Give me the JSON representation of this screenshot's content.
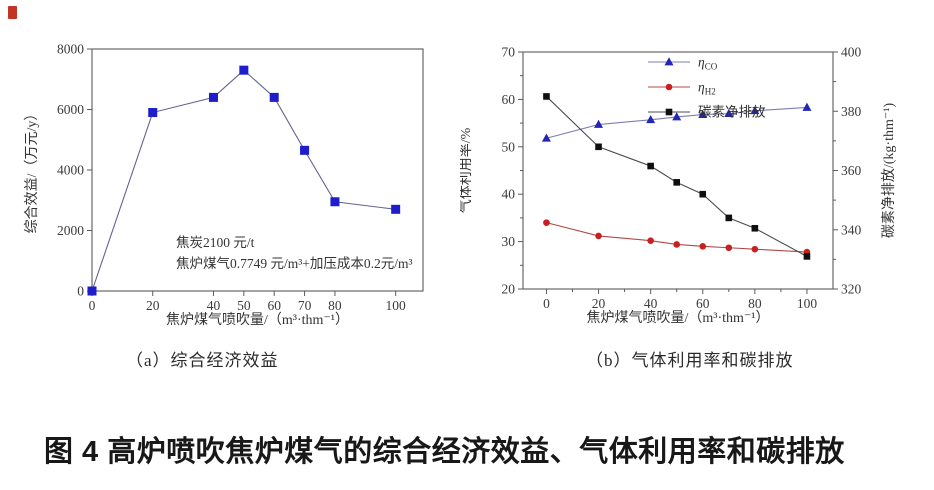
{
  "figure": {
    "title": "图 4 高炉喷吹焦炉煤气的综合经济效益、气体利用率和碳排放",
    "corner_mark_color": "#c23524"
  },
  "chart_data": [
    {
      "type": "line",
      "caption": "（a）综合经济效益",
      "xlabel": "焦炉煤气喷吹量/（m³·thm⁻¹）",
      "ylabel": "综合效益/（万元/y）",
      "x": [
        0,
        20,
        40,
        50,
        60,
        70,
        80,
        100
      ],
      "xticks": [
        0,
        20,
        40,
        50,
        60,
        70,
        80,
        100
      ],
      "xlim": [
        0,
        109
      ],
      "yticks": [
        0,
        2000,
        4000,
        6000,
        8000
      ],
      "ylim": [
        0,
        8000
      ],
      "grid": false,
      "legend_position": "none",
      "series": [
        {
          "name": "综合效益",
          "axis": "left",
          "marker": "square",
          "marker_size": 9,
          "marker_color": "#1d1dcb",
          "line_color": "#63638e",
          "values": [
            0,
            5900,
            6400,
            7300,
            6400,
            4650,
            2950,
            2700
          ]
        }
      ],
      "annotation": {
        "lines": [
          "焦炭2100 元/t",
          "焦炉煤气0.7749 元/m³+加压成本0.2元/m³"
        ]
      }
    },
    {
      "type": "line",
      "caption": "（b）气体利用率和碳排放",
      "xlabel": "焦炉煤气喷吹量/（m³·thm⁻¹）",
      "ylabel": "气体利用率/%",
      "y2label": "碳素净排放/(kg·thm⁻¹)",
      "x": [
        0,
        20,
        40,
        50,
        60,
        70,
        80,
        100
      ],
      "xticks": [
        0,
        20,
        40,
        60,
        80,
        100
      ],
      "xminor": [
        10,
        30,
        50,
        70,
        90
      ],
      "xlim": [
        -9,
        110
      ],
      "yticks": [
        20,
        30,
        40,
        50,
        60,
        70
      ],
      "yminor": [
        25,
        35,
        45,
        55,
        65
      ],
      "ylim": [
        20,
        70
      ],
      "y2ticks": [
        320,
        340,
        360,
        380,
        400
      ],
      "y2minor": [
        330,
        350,
        370,
        390
      ],
      "y2lim": [
        320,
        400
      ],
      "grid": false,
      "legend_position": "top-inside",
      "series": [
        {
          "name": "η_CO",
          "legend_main": "η",
          "legend_sub": "CO",
          "axis": "left",
          "marker": "triangle",
          "marker_size": 8,
          "marker_color": "#2525b5",
          "line_color": "#7d7db4",
          "values": [
            51.8,
            54.7,
            55.7,
            56.3,
            56.8,
            57.0,
            57.6,
            58.3
          ]
        },
        {
          "name": "η_H2",
          "legend_main": "η",
          "legend_sub": "H2",
          "axis": "left",
          "marker": "circle",
          "marker_size": 6.6,
          "marker_color": "#c82020",
          "line_color": "#b24848",
          "values": [
            34.0,
            31.2,
            30.2,
            29.4,
            29.0,
            28.7,
            28.4,
            27.8
          ]
        },
        {
          "name": "碳素净排放",
          "legend_main": "碳素净排放",
          "legend_sub": "",
          "axis": "right",
          "marker": "square",
          "marker_size": 6.6,
          "marker_color": "#0f0f0f",
          "line_color": "#4d4d4d",
          "values": [
            385,
            368,
            361.5,
            356,
            352,
            344,
            340.5,
            331
          ]
        }
      ]
    }
  ]
}
